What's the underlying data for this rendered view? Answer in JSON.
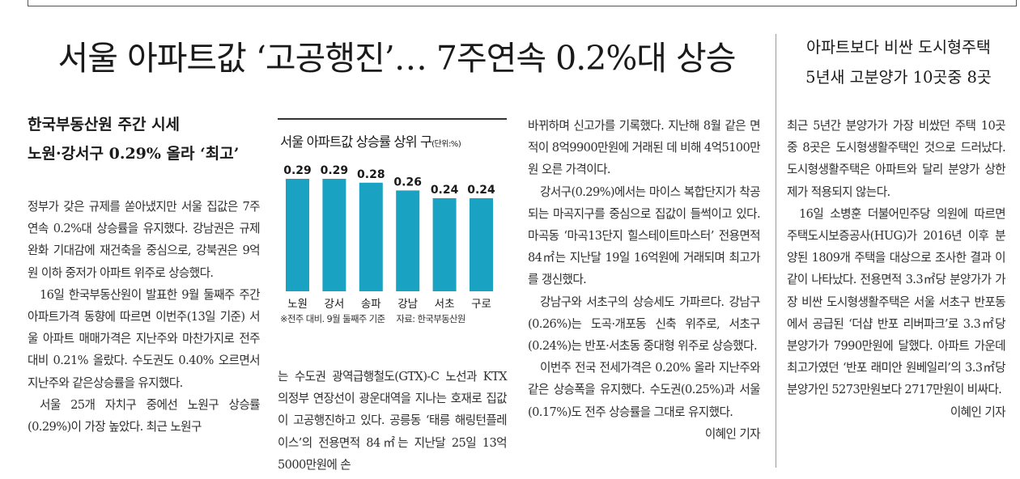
{
  "headline": "서울 아파트값 ‘고공행진’… 7주연속 0.2%대 상승",
  "subheadline": {
    "line1": "한국부동산원 주간 시세",
    "line2": "노원·강서구 0.29% 올라 ‘최고’"
  },
  "col1": {
    "p1": "정부가 갖은 규제를 쏟아냈지만 서울 집값은 7주 연속 0.2%대 상승률을 유지했다. 강남권은 규제 완화 기대감에 재건축을 중심으로, 강북권은 9억원 이하 중저가 아파트 위주로 상승했다.",
    "p2": "16일 한국부동산원이 발표한 9월 둘째주 주간 아파트가격 동향에 따르면 이번주(13일 기준) 서울 아파트 매매가격은 지난주와 마찬가지로 전주 대비 0.21% 올랐다. 수도권도 0.40% 오르면서 지난주와 같은상승률을 유지했다.",
    "p3": "서울 25개 자치구 중에선 노원구 상승률(0.29%)이 가장 높았다. 최근 노원구"
  },
  "col2": {
    "p1": "는 수도권 광역급행철도(GTX)-C 노선과 KTX 의정부 연장선이 광운대역을 지나는 호재로 집값이 고공행진하고 있다. 공릉동 ‘태릉 해링턴플레이스’의 전용면적 84㎡는 지난달 25일 13억5000만원에 손"
  },
  "col3": {
    "p1": "바뀌하며 신고가를 기록했다. 지난해 8월 같은 면적이 8억9900만원에 거래된 데 비해 4억5100만원 오른 가격이다.",
    "p2": "강서구(0.29%)에서는 마이스 복합단지가 착공되는 마곡지구를 중심으로 집값이 들썩이고 있다. 마곡동 ‘마곡13단지 힐스테이트마스터’ 전용면적 84㎡는 지난달 19일 16억원에 거래되며 최고가를 갱신했다.",
    "p3": "강남구와 서초구의 상승세도 가파르다. 강남구(0.26%)는 도곡·개포동 신축 위주로, 서초구(0.24%)는 반포·서초동 중대형 위주로 상승했다.",
    "p4": "이번주 전국 전세가격은 0.20% 올라 지난주와 같은 상승폭을 유지했다. 수도권(0.25%)과 서울(0.17%)도 전주 상승률을 그대로 유지했다.",
    "byline": "이혜인 기자"
  },
  "chart_data": {
    "type": "bar",
    "title": "서울 아파트값 상승률 상위 구",
    "unit": "(단위:%)",
    "categories": [
      "노원",
      "강서",
      "송파",
      "강남",
      "서초",
      "구로"
    ],
    "values": [
      0.29,
      0.29,
      0.28,
      0.26,
      0.24,
      0.24
    ],
    "labels": [
      "0.29",
      "0.29",
      "0.28",
      "0.26",
      "0.24",
      "0.24"
    ],
    "note": "※전주 대비. 9월 둘째주 기준",
    "source": "자료: 한국부동산원",
    "bar_color": "#1aa2c2"
  },
  "side": {
    "headline_line1": "아파트보다 비싼 도시형주택",
    "headline_line2": "5년새 고분양가 10곳중 8곳",
    "p1": "최근 5년간 분양가가 가장 비쌌던 주택 10곳 중 8곳은 도시형생활주택인 것으로 드러났다. 도시형생활주택은 아파트와 달리 분양가 상한제가 적용되지 않는다.",
    "p2": "16일 소병훈 더불어민주당 의원에 따르면 주택도시보증공사(HUG)가 2016년 이후 분양된 1809개 주택을 대상으로 조사한 결과 이같이 나타났다. 전용면적 3.3㎡당 분양가가 가장 비싼 도시형생활주택은 서울 서초구 반포동에서 공급된 ‘더샵 반포 리버파크’로 3.3㎡당 분양가가 7990만원에 달했다. 아파트 가운데 최고가였던 ‘반포 래미안 원베일리’의 3.3㎡당 분양가인 5273만원보다 2717만원이 비싸다.",
    "byline": "이혜인 기자"
  }
}
